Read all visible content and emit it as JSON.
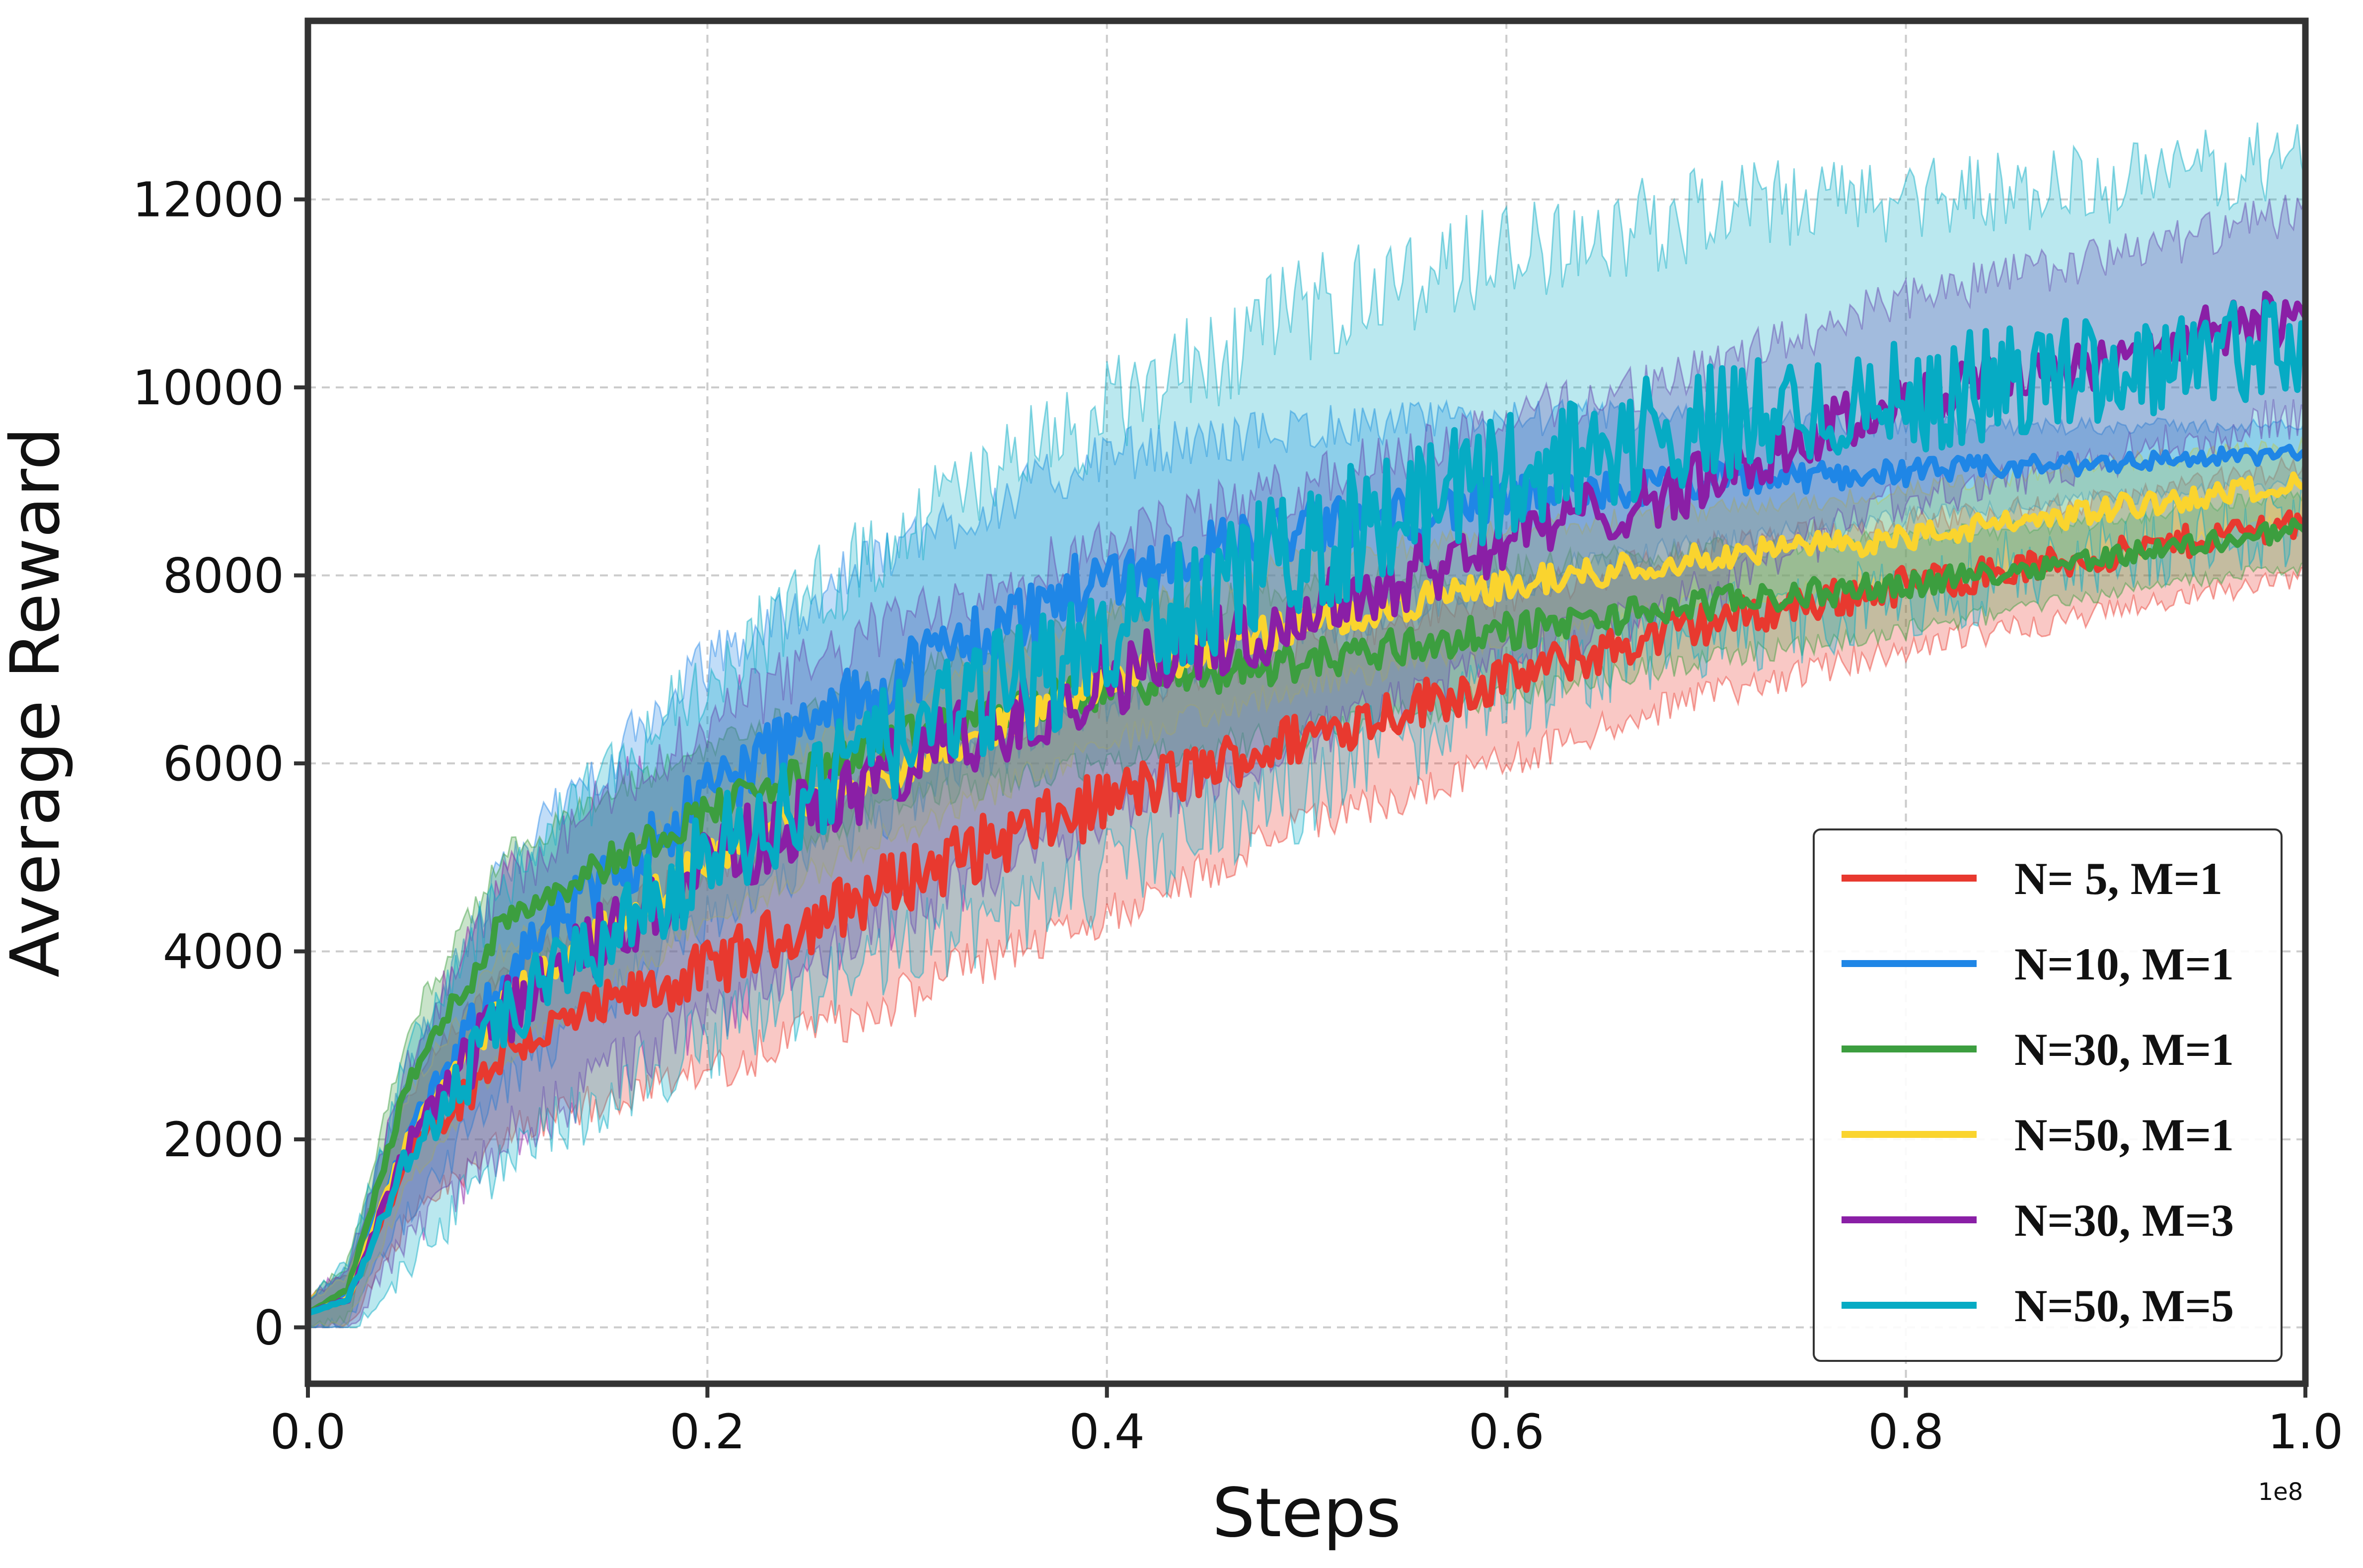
{
  "chart_data": {
    "type": "line",
    "xlabel": "Steps",
    "ylabel": "Average Reward",
    "x_offset_label": "1e8",
    "xlim": [
      0,
      1.0
    ],
    "ylim": [
      -600,
      13900
    ],
    "xticks": [
      0.0,
      0.2,
      0.4,
      0.6,
      0.8,
      1.0
    ],
    "xtick_labels": [
      "0.0",
      "0.2",
      "0.4",
      "0.6",
      "0.8",
      "1.0"
    ],
    "yticks": [
      0,
      2000,
      4000,
      6000,
      8000,
      10000,
      12000
    ],
    "ytick_labels": [
      "0",
      "2000",
      "4000",
      "6000",
      "8000",
      "10000",
      "12000"
    ],
    "grid": true,
    "legend_position": "lower-right",
    "x": [
      0,
      0.02,
      0.05,
      0.1,
      0.2,
      0.3,
      0.4,
      0.5,
      0.6,
      0.7,
      0.8,
      0.9,
      1.0
    ],
    "series": [
      {
        "name": "N= 5, M=1",
        "color": "#e8392f",
        "values": [
          150,
          300,
          1800,
          3000,
          3800,
          4800,
          5600,
          6300,
          6900,
          7500,
          7900,
          8200,
          8600
        ],
        "band": [
          150,
          300,
          700,
          900,
          1100,
          1300,
          1200,
          1000,
          900,
          800,
          700,
          600,
          600
        ]
      },
      {
        "name": "N=10, M=1",
        "color": "#1f86e6",
        "values": [
          150,
          350,
          2000,
          3800,
          5700,
          7000,
          8000,
          8500,
          8800,
          9000,
          9100,
          9200,
          9300
        ],
        "band": [
          150,
          300,
          800,
          1200,
          1400,
          1400,
          1300,
          1100,
          900,
          700,
          500,
          400,
          300
        ]
      },
      {
        "name": "N=30, M=1",
        "color": "#3c9e3f",
        "values": [
          150,
          400,
          2600,
          4400,
          5500,
          6300,
          6800,
          7100,
          7400,
          7700,
          7900,
          8200,
          8500
        ],
        "band": [
          150,
          300,
          600,
          700,
          700,
          700,
          800,
          800,
          700,
          600,
          500,
          400,
          400
        ]
      },
      {
        "name": "N=50, M=1",
        "color": "#fad42e",
        "values": [
          150,
          300,
          2000,
          3500,
          5000,
          6000,
          6900,
          7500,
          7900,
          8200,
          8400,
          8700,
          9000
        ],
        "band": [
          150,
          250,
          500,
          600,
          700,
          700,
          700,
          700,
          600,
          500,
          500,
          500,
          400
        ]
      },
      {
        "name": "N=30, M=3",
        "color": "#8a1fa6",
        "values": [
          150,
          300,
          1900,
          3400,
          4900,
          6000,
          6900,
          7600,
          8400,
          9000,
          9900,
          10300,
          10800
        ],
        "band": [
          150,
          350,
          1000,
          1400,
          1600,
          1600,
          1500,
          1400,
          1300,
          1200,
          1100,
          1100,
          1100
        ]
      },
      {
        "name": "N=50, M=5",
        "color": "#06abc4",
        "values": [
          150,
          300,
          1800,
          3300,
          5000,
          6300,
          7300,
          8300,
          9100,
          9600,
          9900,
          10200,
          10500
        ],
        "band": [
          150,
          400,
          1100,
          1500,
          2000,
          2300,
          2500,
          2600,
          2400,
          2300,
          2200,
          2000,
          2000
        ]
      }
    ]
  }
}
